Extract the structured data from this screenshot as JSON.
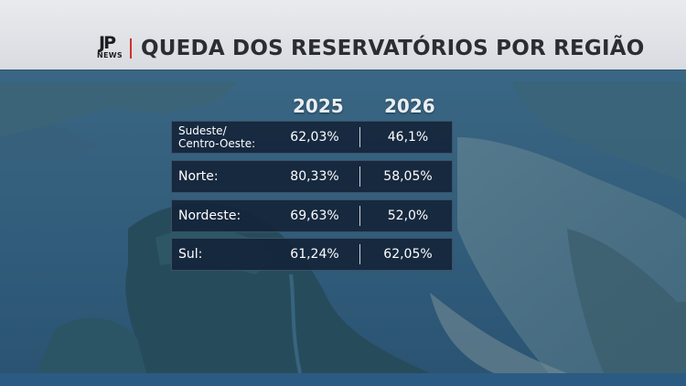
{
  "brand": {
    "mark": "JP",
    "sub": "NEWS"
  },
  "title": "QUEDA DOS RESERVATÓRIOS POR REGIÃO",
  "years": [
    "2025",
    "2026"
  ],
  "rows": [
    {
      "region": "Sudeste/\nCentro-Oeste:",
      "v2025": "62,03%",
      "v2026": "46,1%"
    },
    {
      "region": "Norte:",
      "v2025": "80,33%",
      "v2026": "58,05%"
    },
    {
      "region": "Nordeste:",
      "v2025": "69,63%",
      "v2026": "52,0%"
    },
    {
      "region": "Sul:",
      "v2025": "61,24%",
      "v2026": "62,05%"
    }
  ],
  "colors": {
    "accent": "#d0322e",
    "banner": "#e3e5e9",
    "row_bg": "#142438",
    "water": "#2e5a78"
  }
}
